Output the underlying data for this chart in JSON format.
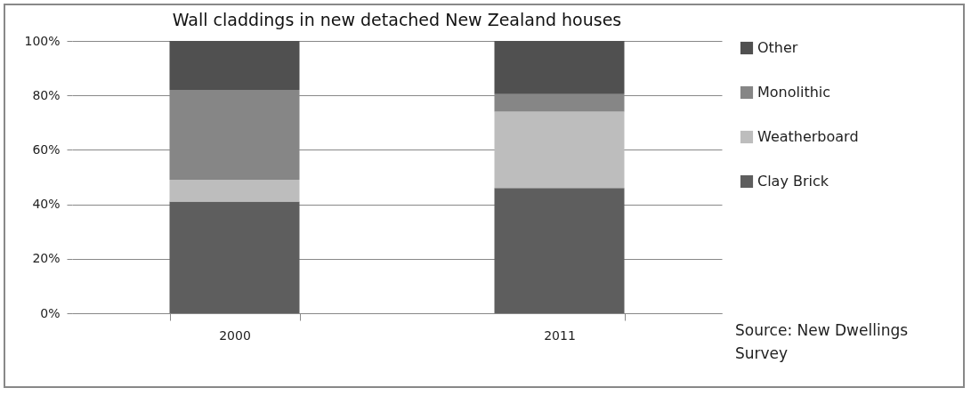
{
  "chart_data": {
    "type": "bar",
    "title": "Wall claddings in new detached New Zealand houses",
    "categories": [
      "2000",
      "2011"
    ],
    "series": [
      {
        "name": "Clay Brick",
        "color": "#5e5e5e",
        "values": [
          41,
          46
        ]
      },
      {
        "name": "Weatherboard",
        "color": "#bdbdbd",
        "values": [
          8,
          28
        ]
      },
      {
        "name": "Monolithic",
        "color": "#868686",
        "values": [
          33,
          6.5
        ]
      },
      {
        "name": "Other",
        "color": "#505050",
        "values": [
          18,
          19.5
        ]
      }
    ],
    "stacked": true,
    "ylim": [
      0,
      100
    ],
    "yticks": [
      {
        "value": 0,
        "label": "0%"
      },
      {
        "value": 20,
        "label": "20%"
      },
      {
        "value": 40,
        "label": "40%"
      },
      {
        "value": 60,
        "label": "60%"
      },
      {
        "value": 80,
        "label": "80%"
      },
      {
        "value": 100,
        "label": "100%"
      }
    ],
    "grid": "y",
    "legend": "right",
    "annotations": [
      "Source: New Dwellings Survey"
    ]
  }
}
